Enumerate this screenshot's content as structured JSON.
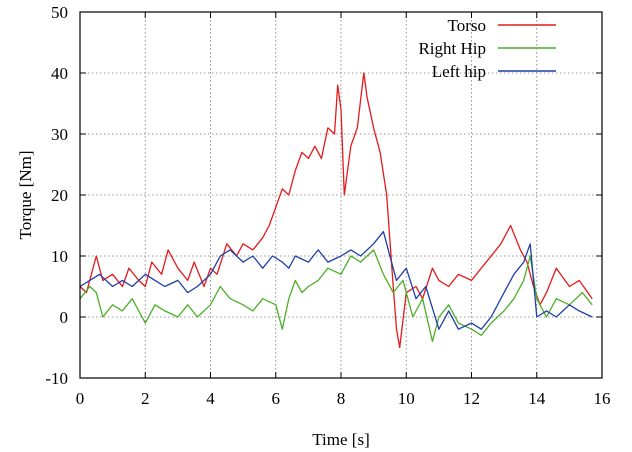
{
  "chart_data": {
    "type": "line",
    "title": "",
    "xlabel": "Time [s]",
    "ylabel": "Torque [Nm]",
    "xlim": [
      0,
      16
    ],
    "ylim": [
      -10,
      50
    ],
    "xticks": [
      0,
      2,
      4,
      6,
      8,
      10,
      12,
      14,
      16
    ],
    "yticks": [
      -10,
      0,
      10,
      20,
      30,
      40,
      50
    ],
    "grid": true,
    "legend_position": "top-right",
    "series": [
      {
        "name": "Torso",
        "color": "#e41a1c",
        "points": [
          [
            0,
            5
          ],
          [
            0.2,
            4
          ],
          [
            0.4,
            8
          ],
          [
            0.5,
            10
          ],
          [
            0.7,
            6
          ],
          [
            1,
            7
          ],
          [
            1.3,
            5
          ],
          [
            1.5,
            8
          ],
          [
            1.8,
            6
          ],
          [
            2,
            5
          ],
          [
            2.2,
            9
          ],
          [
            2.5,
            7
          ],
          [
            2.7,
            11
          ],
          [
            3,
            8
          ],
          [
            3.3,
            6
          ],
          [
            3.5,
            9
          ],
          [
            3.8,
            5
          ],
          [
            4,
            8
          ],
          [
            4.2,
            7
          ],
          [
            4.5,
            12
          ],
          [
            4.8,
            10
          ],
          [
            5,
            12
          ],
          [
            5.3,
            11
          ],
          [
            5.6,
            13
          ],
          [
            5.8,
            15
          ],
          [
            6,
            18
          ],
          [
            6.2,
            21
          ],
          [
            6.4,
            20
          ],
          [
            6.6,
            24
          ],
          [
            6.8,
            27
          ],
          [
            7,
            26
          ],
          [
            7.2,
            28
          ],
          [
            7.4,
            26
          ],
          [
            7.6,
            31
          ],
          [
            7.8,
            30
          ],
          [
            7.9,
            38
          ],
          [
            8,
            34
          ],
          [
            8.1,
            20
          ],
          [
            8.3,
            28
          ],
          [
            8.5,
            31
          ],
          [
            8.7,
            40
          ],
          [
            8.8,
            36
          ],
          [
            9,
            31
          ],
          [
            9.2,
            27
          ],
          [
            9.4,
            20
          ],
          [
            9.6,
            5
          ],
          [
            9.7,
            -2
          ],
          [
            9.8,
            -5
          ],
          [
            10,
            4
          ],
          [
            10.3,
            5
          ],
          [
            10.5,
            3
          ],
          [
            10.8,
            8
          ],
          [
            11,
            6
          ],
          [
            11.3,
            5
          ],
          [
            11.6,
            7
          ],
          [
            12,
            6
          ],
          [
            12.3,
            8
          ],
          [
            12.6,
            10
          ],
          [
            12.9,
            12
          ],
          [
            13.2,
            15
          ],
          [
            13.5,
            11
          ],
          [
            13.7,
            9
          ],
          [
            13.9,
            5
          ],
          [
            14.1,
            2
          ],
          [
            14.3,
            4
          ],
          [
            14.6,
            8
          ],
          [
            15,
            5
          ],
          [
            15.3,
            6
          ],
          [
            15.7,
            3
          ]
        ]
      },
      {
        "name": "Right Hip",
        "color": "#4daf28",
        "points": [
          [
            0,
            3
          ],
          [
            0.3,
            5
          ],
          [
            0.5,
            4
          ],
          [
            0.7,
            0
          ],
          [
            1,
            2
          ],
          [
            1.3,
            1
          ],
          [
            1.6,
            3
          ],
          [
            2,
            -1
          ],
          [
            2.3,
            2
          ],
          [
            2.6,
            1
          ],
          [
            3,
            0
          ],
          [
            3.3,
            2
          ],
          [
            3.6,
            0
          ],
          [
            4,
            2
          ],
          [
            4.3,
            5
          ],
          [
            4.6,
            3
          ],
          [
            5,
            2
          ],
          [
            5.3,
            1
          ],
          [
            5.6,
            3
          ],
          [
            6,
            2
          ],
          [
            6.2,
            -2
          ],
          [
            6.4,
            3
          ],
          [
            6.6,
            6
          ],
          [
            6.8,
            4
          ],
          [
            7,
            5
          ],
          [
            7.3,
            6
          ],
          [
            7.6,
            8
          ],
          [
            8,
            7
          ],
          [
            8.3,
            10
          ],
          [
            8.6,
            9
          ],
          [
            9,
            11
          ],
          [
            9.3,
            7
          ],
          [
            9.6,
            4
          ],
          [
            9.9,
            6
          ],
          [
            10.2,
            0
          ],
          [
            10.5,
            3
          ],
          [
            10.8,
            -4
          ],
          [
            11,
            0
          ],
          [
            11.3,
            2
          ],
          [
            11.6,
            -1
          ],
          [
            12,
            -2
          ],
          [
            12.3,
            -3
          ],
          [
            12.6,
            -1
          ],
          [
            13,
            1
          ],
          [
            13.3,
            3
          ],
          [
            13.6,
            6
          ],
          [
            13.8,
            10
          ],
          [
            14,
            3
          ],
          [
            14.3,
            0
          ],
          [
            14.6,
            3
          ],
          [
            15,
            2
          ],
          [
            15.4,
            4
          ],
          [
            15.7,
            2
          ]
        ]
      },
      {
        "name": "Left hip",
        "color": "#1f3fa8",
        "points": [
          [
            0,
            5
          ],
          [
            0.3,
            6
          ],
          [
            0.6,
            7
          ],
          [
            1,
            5
          ],
          [
            1.3,
            6
          ],
          [
            1.6,
            5
          ],
          [
            2,
            7
          ],
          [
            2.3,
            6
          ],
          [
            2.6,
            5
          ],
          [
            3,
            6
          ],
          [
            3.3,
            4
          ],
          [
            3.6,
            5
          ],
          [
            4,
            7
          ],
          [
            4.3,
            10
          ],
          [
            4.6,
            11
          ],
          [
            5,
            9
          ],
          [
            5.3,
            10
          ],
          [
            5.6,
            8
          ],
          [
            5.9,
            10
          ],
          [
            6.2,
            9
          ],
          [
            6.4,
            8
          ],
          [
            6.6,
            10
          ],
          [
            7,
            9
          ],
          [
            7.3,
            11
          ],
          [
            7.6,
            9
          ],
          [
            8,
            10
          ],
          [
            8.3,
            11
          ],
          [
            8.6,
            10
          ],
          [
            9,
            12
          ],
          [
            9.3,
            14
          ],
          [
            9.5,
            10
          ],
          [
            9.7,
            6
          ],
          [
            10,
            8
          ],
          [
            10.3,
            3
          ],
          [
            10.6,
            5
          ],
          [
            11,
            -2
          ],
          [
            11.3,
            1
          ],
          [
            11.6,
            -2
          ],
          [
            12,
            -1
          ],
          [
            12.3,
            -2
          ],
          [
            12.6,
            0
          ],
          [
            13,
            4
          ],
          [
            13.3,
            7
          ],
          [
            13.6,
            9
          ],
          [
            13.8,
            12
          ],
          [
            14,
            0
          ],
          [
            14.3,
            1
          ],
          [
            14.6,
            0
          ],
          [
            15,
            2
          ],
          [
            15.3,
            1
          ],
          [
            15.7,
            0
          ]
        ]
      }
    ]
  }
}
